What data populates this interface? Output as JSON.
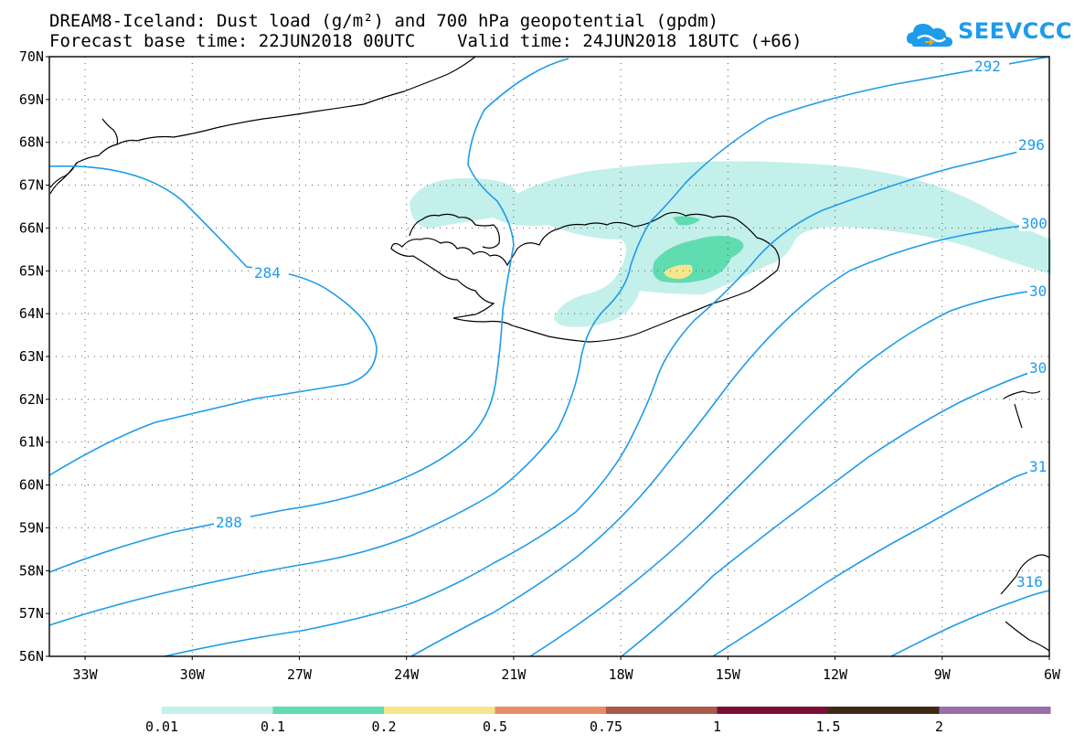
{
  "header": {
    "title_line1": "DREAM8-Iceland: Dust load (g/m²) and 700 hPa geopotential (gpdm)",
    "title_line2": "Forecast base time: 22JUN2018 00UTC    Valid time: 24JUN2018 18UTC (+66)"
  },
  "logo": {
    "text": "SEEVCCC",
    "icon": "cloud-icon",
    "color": "#1e9be9"
  },
  "axes": {
    "lat_labels": [
      "70N",
      "69N",
      "68N",
      "67N",
      "66N",
      "65N",
      "64N",
      "63N",
      "62N",
      "61N",
      "60N",
      "59N",
      "58N",
      "57N",
      "56N"
    ],
    "lon_labels": [
      "33W",
      "30W",
      "27W",
      "24W",
      "21W",
      "18W",
      "15W",
      "12W",
      "9W",
      "6W"
    ],
    "lat_range": [
      56,
      70
    ],
    "lon_range": [
      -34,
      -6
    ],
    "grid": true
  },
  "contours": {
    "color": "#1e9be9",
    "labels": [
      "284",
      "288",
      "292",
      "296",
      "300",
      "30",
      "30",
      "31",
      "316"
    ]
  },
  "dust_colors": {
    "0.01": "#c3f0ea",
    "0.1": "#5fdcb0",
    "0.2": "#f5e68c"
  },
  "colorbar": {
    "colors": [
      "#c3f0ea",
      "#5fdcb0",
      "#f5e68c",
      "#e88c68",
      "#a85a4c",
      "#7a0e32",
      "#3e2a14",
      "#9a6ea8"
    ],
    "labels": [
      "0.01",
      "0.1",
      "0.2",
      "0.5",
      "0.75",
      "1",
      "1.5",
      "2"
    ]
  }
}
